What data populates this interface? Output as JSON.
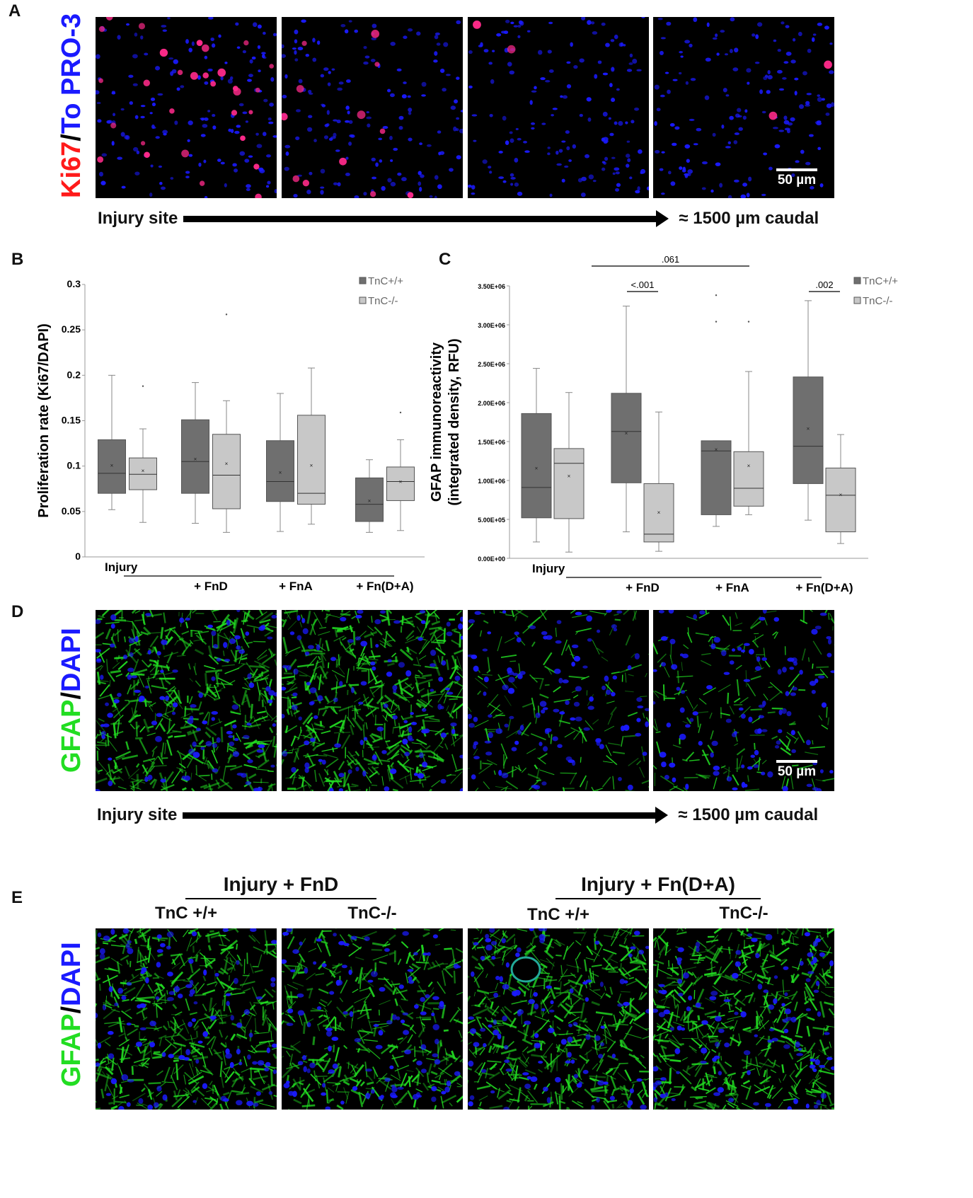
{
  "panels": {
    "A": {
      "letter": "A",
      "stain": {
        "part1": "Ki67",
        "sep": "/",
        "part2": "To PRO-3"
      },
      "scalebar": "50 µm",
      "arrow": {
        "start": "Injury site",
        "end": "≈  1500 µm caudal"
      }
    },
    "B": {
      "letter": "B"
    },
    "C": {
      "letter": "C"
    },
    "D": {
      "letter": "D",
      "stain": {
        "part1": "GFAP",
        "sep": "/",
        "part2": "DAPI"
      },
      "scalebar": "50 µm",
      "arrow": {
        "start": "Injury site",
        "end": "≈  1500 µm caudal"
      }
    },
    "E": {
      "letter": "E",
      "stain": {
        "part1": "GFAP",
        "sep": "/",
        "part2": "DAPI"
      },
      "groups": [
        {
          "title": "Injury + FnD",
          "cols": [
            "TnC +/+",
            "TnC-/-"
          ]
        },
        {
          "title": "Injury + Fn(D+A)",
          "cols": [
            "TnC +/+",
            "TnC-/-"
          ]
        }
      ]
    }
  },
  "colors": {
    "tnc_wt": "#6f6f6f",
    "tnc_ko": "#c8c8c8",
    "ki67": "#ff1a1a",
    "nuclei": "#1a1aff",
    "gfap": "#22dd22"
  },
  "chart_data": [
    {
      "type": "box",
      "panel": "B",
      "ylabel": "Proliferation rate (Ki67/DAPI)",
      "ylim": [
        0,
        0.3
      ],
      "yticks": [
        "0",
        "0.05",
        "0.1",
        "0.15",
        "0.2",
        "0.25",
        "0.3"
      ],
      "categories": [
        "Injury",
        "+ FnD",
        "+ FnA",
        "+ Fn(D+A)"
      ],
      "series": [
        {
          "name": "TnC+/+",
          "boxes": [
            {
              "min": 0.052,
              "q1": 0.07,
              "median": 0.092,
              "q3": 0.129,
              "max": 0.2,
              "mean": 0.101,
              "outliers": []
            },
            {
              "min": 0.037,
              "q1": 0.07,
              "median": 0.105,
              "q3": 0.151,
              "max": 0.192,
              "mean": 0.108,
              "outliers": []
            },
            {
              "min": 0.028,
              "q1": 0.061,
              "median": 0.083,
              "q3": 0.128,
              "max": 0.18,
              "mean": 0.093,
              "outliers": []
            },
            {
              "min": 0.027,
              "q1": 0.039,
              "median": 0.058,
              "q3": 0.087,
              "max": 0.107,
              "mean": 0.062,
              "outliers": []
            }
          ]
        },
        {
          "name": "TnC-/-",
          "boxes": [
            {
              "min": 0.038,
              "q1": 0.074,
              "median": 0.091,
              "q3": 0.109,
              "max": 0.141,
              "mean": 0.095,
              "outliers": [
                0.188
              ]
            },
            {
              "min": 0.027,
              "q1": 0.053,
              "median": 0.09,
              "q3": 0.135,
              "max": 0.172,
              "mean": 0.103,
              "outliers": [
                0.267
              ]
            },
            {
              "min": 0.036,
              "q1": 0.058,
              "median": 0.07,
              "q3": 0.156,
              "max": 0.208,
              "mean": 0.101,
              "outliers": []
            },
            {
              "min": 0.029,
              "q1": 0.062,
              "median": 0.083,
              "q3": 0.099,
              "max": 0.129,
              "mean": 0.083,
              "outliers": [
                0.159
              ]
            }
          ]
        }
      ]
    },
    {
      "type": "box",
      "panel": "C",
      "ylabel": "GFAP immunoreactivity (integrated density, RFU)",
      "ylim": [
        0,
        3500000
      ],
      "yticks": [
        "0.00E+00",
        "5.00E+05",
        "1.00E+06",
        "1.50E+06",
        "2.00E+06",
        "2.50E+06",
        "3.00E+06",
        "3.50E+06"
      ],
      "categories": [
        "Injury",
        "+ FnD",
        "+ FnA",
        "+ Fn(D+A)"
      ],
      "series": [
        {
          "name": "TnC+/+",
          "boxes": [
            {
              "min": 210000,
              "q1": 520000,
              "median": 910000,
              "q3": 1860000,
              "max": 2440000,
              "mean": 1160000,
              "outliers": []
            },
            {
              "min": 340000,
              "q1": 970000,
              "median": 1630000,
              "q3": 2120000,
              "max": 3240000,
              "mean": 1610000,
              "outliers": []
            },
            {
              "min": 410000,
              "q1": 560000,
              "median": 1380000,
              "q3": 1510000,
              "max": 1510000,
              "mean": 1400000,
              "outliers": [
                3040000,
                3380000
              ]
            },
            {
              "min": 490000,
              "q1": 960000,
              "median": 1440000,
              "q3": 2330000,
              "max": 3310000,
              "mean": 1670000,
              "outliers": []
            }
          ]
        },
        {
          "name": "TnC-/-",
          "boxes": [
            {
              "min": 80000,
              "q1": 510000,
              "median": 1220000,
              "q3": 1410000,
              "max": 2130000,
              "mean": 1060000,
              "outliers": []
            },
            {
              "min": 90000,
              "q1": 210000,
              "median": 310000,
              "q3": 960000,
              "max": 1880000,
              "mean": 590000,
              "outliers": []
            },
            {
              "min": 560000,
              "q1": 670000,
              "median": 900000,
              "q3": 1370000,
              "max": 2400000,
              "mean": 1190000,
              "outliers": [
                3040000
              ]
            },
            {
              "min": 190000,
              "q1": 340000,
              "median": 810000,
              "q3": 1160000,
              "max": 1590000,
              "mean": 820000,
              "outliers": []
            }
          ]
        }
      ],
      "annotations": [
        {
          "text": "<.001",
          "group": 1
        },
        {
          "text": ".061",
          "span": [
            1,
            2
          ]
        },
        {
          "text": ".002",
          "group": 3
        }
      ]
    }
  ]
}
